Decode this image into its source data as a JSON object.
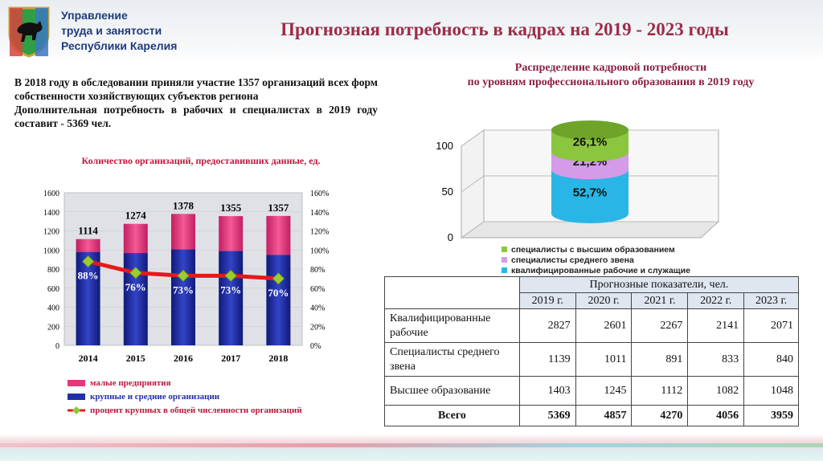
{
  "header": {
    "org_line1": "Управление",
    "org_line2": "труда и занятости",
    "org_line3": "Республики Карелия",
    "title": "Прогнозная потребность в кадрах на 2019 - 2023 годы"
  },
  "intro": {
    "p1": "В 2018 году в обследовании приняли участие 1357 организаций всех форм собственности хозяйствующих субъектов региона",
    "p2": "Дополнительная потребность в рабочих и специалистах в 2019 году составит - 5369 чел."
  },
  "left_chart_title": "Количество организаций, предоставивших данные, ед.",
  "chart_data": [
    {
      "type": "bar",
      "title": "Количество организаций, предоставивших данные, ед.",
      "categories": [
        "2014",
        "2015",
        "2016",
        "2017",
        "2018"
      ],
      "totals": [
        1114,
        1274,
        1378,
        1355,
        1357
      ],
      "percent_labels": [
        "88%",
        "76%",
        "73%",
        "73%",
        "70%"
      ],
      "series": [
        {
          "name": "крупные и средние организации",
          "values": [
            980,
            968,
            1006,
            989,
            950
          ],
          "color": "#1f2fa8"
        },
        {
          "name": "малые предприятия",
          "values": [
            134,
            306,
            372,
            366,
            407
          ],
          "color": "#e5387a"
        },
        {
          "name": "процент крупных в общей численности организаций",
          "values": [
            88,
            76,
            73,
            73,
            70
          ],
          "axis": "right",
          "color": "#e41a1a"
        }
      ],
      "ylim": [
        0,
        1600
      ],
      "yticks": [
        "0",
        "200",
        "400",
        "600",
        "800",
        "1000",
        "1200",
        "1400",
        "1600"
      ],
      "y2lim": [
        0,
        160
      ],
      "y2ticks": [
        "0%",
        "20%",
        "40%",
        "60%",
        "80%",
        "100%",
        "120%",
        "140%",
        "160%"
      ]
    },
    {
      "type": "bar",
      "title": "Распределение кадровой потребности по уровням профессионального образования в 2019 году",
      "series": [
        {
          "name": "квалифицированные рабочие и служащие",
          "value": 52.7,
          "label": "52,7%",
          "color": "#29b6e6"
        },
        {
          "name": "специалисты среднего звена",
          "value": 21.2,
          "label": "21,2%",
          "color": "#d49be8"
        },
        {
          "name": "специалисты с высшим образованием",
          "value": 26.1,
          "label": "26,1%",
          "color": "#8cc63f"
        }
      ],
      "ylim": [
        0,
        100
      ],
      "yticks": [
        "0",
        "50",
        "100"
      ]
    }
  ],
  "legend_left": {
    "small": "малые предприятия",
    "large": "крупные и средние организации",
    "percent": "процент крупных в общей численности организаций"
  },
  "pie_title": {
    "line1": "Распределение кадровой потребности",
    "line2": "по уровням профессионального образования в 2019 году"
  },
  "legend_right": {
    "higher": "специалисты с высшим образованием",
    "middle": "специалисты среднего звена",
    "workers": "квалифицированные рабочие и служащие"
  },
  "table": {
    "header_group": "Прогнозные показатели, чел.",
    "years": [
      "2019 г.",
      "2020 г.",
      "2021 г.",
      "2022 г.",
      "2023 г."
    ],
    "rows": [
      {
        "label": "Квалифицированные рабочие",
        "values": [
          "2827",
          "2601",
          "2267",
          "2141",
          "2071"
        ]
      },
      {
        "label": "Специалисты среднего звена",
        "values": [
          "1139",
          "1011",
          "891",
          "833",
          "840"
        ]
      },
      {
        "label": "Высшее образование",
        "values": [
          "1403",
          "1245",
          "1112",
          "1082",
          "1048"
        ]
      }
    ],
    "total": {
      "label": "Всего",
      "values": [
        "5369",
        "4857",
        "4270",
        "4056",
        "3959"
      ]
    }
  }
}
